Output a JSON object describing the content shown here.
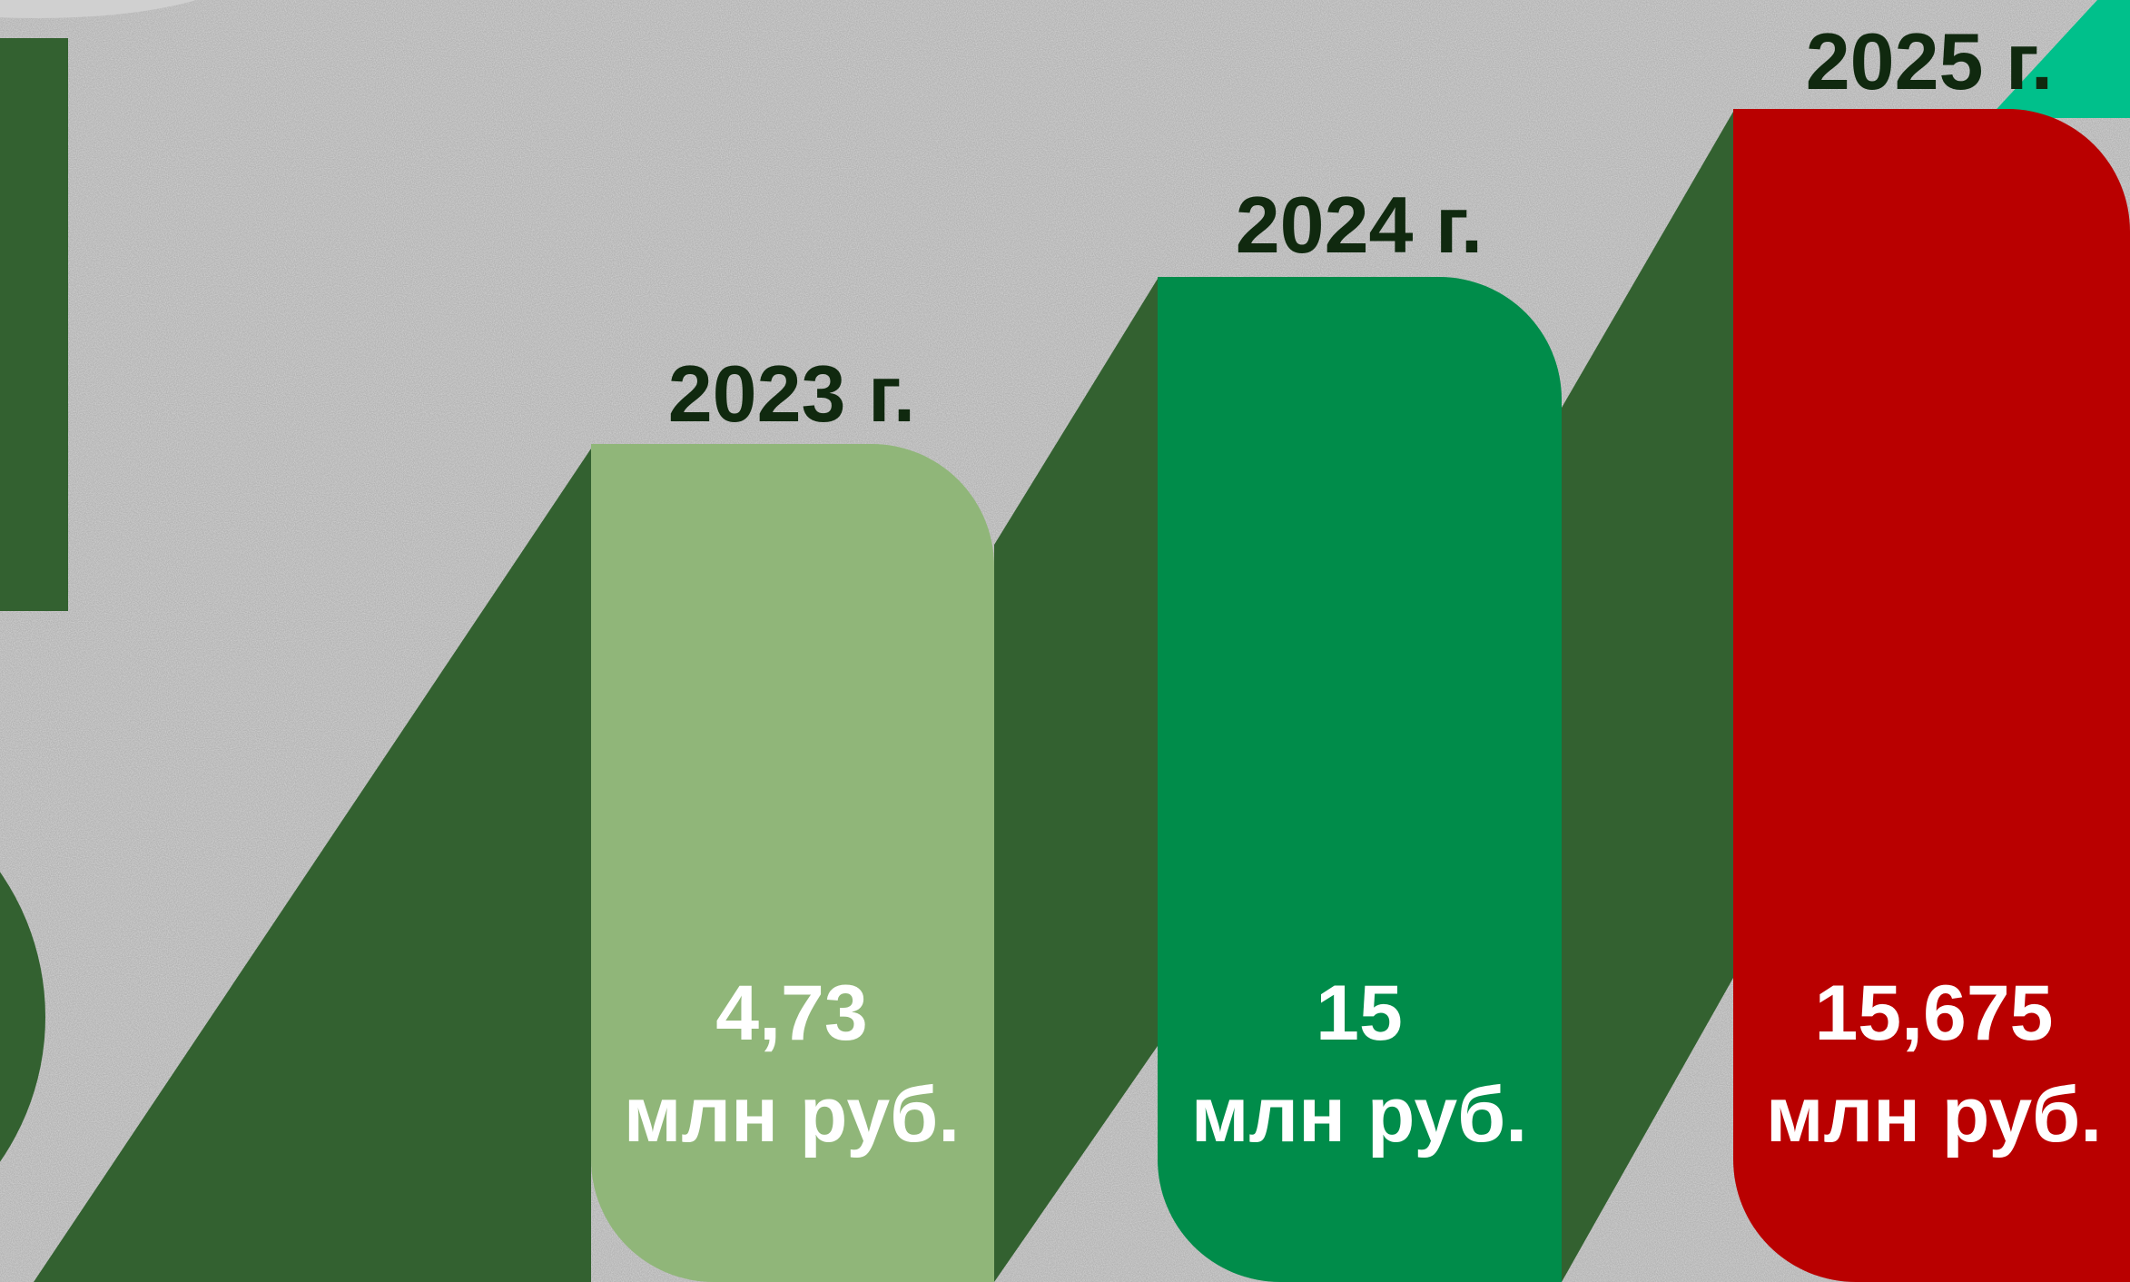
{
  "items": [
    {
      "year": "2023 г.",
      "value": "4,73",
      "unit": "млн руб."
    },
    {
      "year": "2024 г.",
      "value": "15",
      "unit": "млн руб."
    },
    {
      "year": "2025 г.",
      "value": "15,675",
      "unit": "млн руб."
    }
  ]
}
